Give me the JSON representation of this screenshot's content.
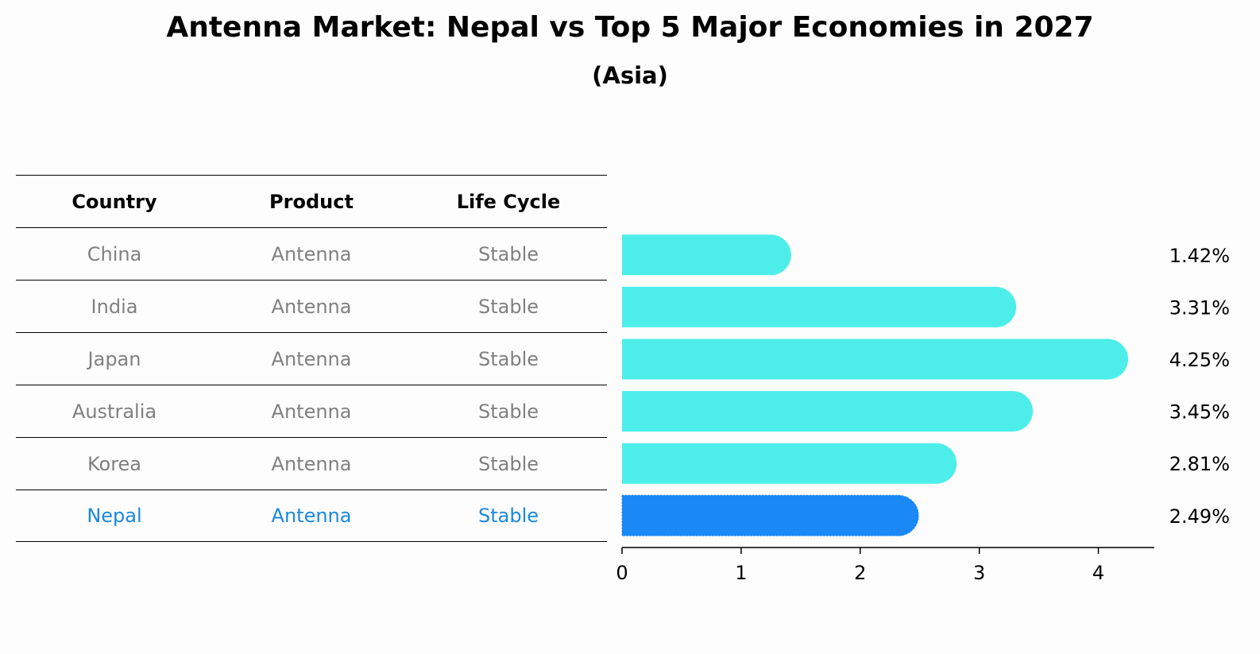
{
  "header": {
    "title": "Antenna Market: Nepal vs Top 5 Major Economies in 2027",
    "subtitle": "(Asia)"
  },
  "table": {
    "columns": [
      "Country",
      "Product",
      "Life Cycle"
    ],
    "rows": [
      {
        "country": "China",
        "product": "Antenna",
        "life_cycle": "Stable"
      },
      {
        "country": "India",
        "product": "Antenna",
        "life_cycle": "Stable"
      },
      {
        "country": "Japan",
        "product": "Antenna",
        "life_cycle": "Stable"
      },
      {
        "country": "Australia",
        "product": "Antenna",
        "life_cycle": "Stable"
      },
      {
        "country": "Korea",
        "product": "Antenna",
        "life_cycle": "Stable"
      },
      {
        "country": "Nepal",
        "product": "Antenna",
        "life_cycle": "Stable"
      }
    ]
  },
  "colors": {
    "bar": "#4deeea",
    "highlight": "#1a88f5",
    "highlight_text": "#1a88e0",
    "muted_text": "#808080"
  },
  "chart_data": {
    "type": "bar",
    "orientation": "horizontal",
    "title": "Antenna Market: Nepal vs Top 5 Major Economies in 2027",
    "subtitle": "(Asia)",
    "categories": [
      "China",
      "India",
      "Japan",
      "Australia",
      "Korea",
      "Nepal"
    ],
    "values": [
      1.42,
      3.31,
      4.25,
      3.45,
      2.81,
      2.49
    ],
    "value_labels": [
      "1.42%",
      "3.31%",
      "4.25%",
      "3.45%",
      "2.81%",
      "2.49%"
    ],
    "highlight": "Nepal",
    "xlim": [
      0,
      4.47
    ],
    "xticks": [
      0,
      1,
      2,
      3,
      4
    ],
    "xlabel": "",
    "ylabel": ""
  }
}
